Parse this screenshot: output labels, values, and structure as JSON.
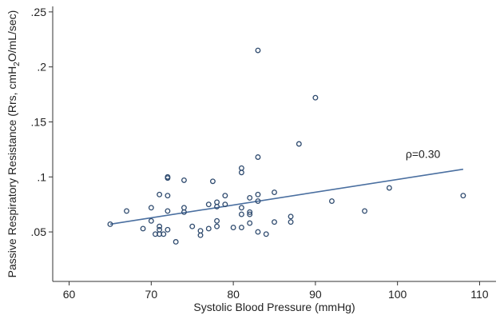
{
  "chart_data": {
    "type": "scatter",
    "title": "",
    "xlabel": "Systolic Blood Pressure (mmHg)",
    "ylabel_parts": [
      "Passive Respiratory Resistance (Rrs, cmH",
      "2",
      "O/mL/sec)"
    ],
    "xlim": [
      58,
      112
    ],
    "ylim": [
      0.005,
      0.255
    ],
    "xticks": [
      60,
      70,
      80,
      90,
      100,
      110
    ],
    "xtick_labels": [
      "60",
      "70",
      "80",
      "90",
      "100",
      "110"
    ],
    "yticks": [
      0.05,
      0.1,
      0.15,
      0.2,
      0.25
    ],
    "ytick_labels": [
      ".05",
      ".1",
      ".15",
      ".2",
      ".25"
    ],
    "grid": false,
    "annotation": "ρ=0.30",
    "marker": "hollow-circle",
    "colors": {
      "marker": "#2e4a6e",
      "fit_line": "#4a6fa0",
      "axis": "#333333"
    },
    "fit_line": {
      "x": [
        65,
        108
      ],
      "y": [
        0.057,
        0.107
      ]
    },
    "points": [
      {
        "x": 65,
        "y": 0.057
      },
      {
        "x": 67,
        "y": 0.069
      },
      {
        "x": 69,
        "y": 0.053
      },
      {
        "x": 70,
        "y": 0.072
      },
      {
        "x": 70,
        "y": 0.06
      },
      {
        "x": 70.5,
        "y": 0.048
      },
      {
        "x": 71,
        "y": 0.084
      },
      {
        "x": 71,
        "y": 0.055
      },
      {
        "x": 71,
        "y": 0.052
      },
      {
        "x": 71,
        "y": 0.048
      },
      {
        "x": 71.5,
        "y": 0.048
      },
      {
        "x": 72,
        "y": 0.1
      },
      {
        "x": 72,
        "y": 0.099
      },
      {
        "x": 72,
        "y": 0.083
      },
      {
        "x": 72,
        "y": 0.069
      },
      {
        "x": 72,
        "y": 0.052
      },
      {
        "x": 73,
        "y": 0.041
      },
      {
        "x": 74,
        "y": 0.097
      },
      {
        "x": 74,
        "y": 0.072
      },
      {
        "x": 74,
        "y": 0.068
      },
      {
        "x": 75,
        "y": 0.055
      },
      {
        "x": 76,
        "y": 0.051
      },
      {
        "x": 76,
        "y": 0.047
      },
      {
        "x": 77,
        "y": 0.075
      },
      {
        "x": 77,
        "y": 0.053
      },
      {
        "x": 77.5,
        "y": 0.096
      },
      {
        "x": 78,
        "y": 0.077
      },
      {
        "x": 78,
        "y": 0.073
      },
      {
        "x": 78,
        "y": 0.06
      },
      {
        "x": 78,
        "y": 0.055
      },
      {
        "x": 79,
        "y": 0.083
      },
      {
        "x": 79,
        "y": 0.075
      },
      {
        "x": 80,
        "y": 0.054
      },
      {
        "x": 81,
        "y": 0.108
      },
      {
        "x": 81,
        "y": 0.104
      },
      {
        "x": 81,
        "y": 0.072
      },
      {
        "x": 81,
        "y": 0.066
      },
      {
        "x": 81,
        "y": 0.054
      },
      {
        "x": 82,
        "y": 0.081
      },
      {
        "x": 82,
        "y": 0.068
      },
      {
        "x": 82,
        "y": 0.066
      },
      {
        "x": 82,
        "y": 0.058
      },
      {
        "x": 83,
        "y": 0.215
      },
      {
        "x": 83,
        "y": 0.118
      },
      {
        "x": 83,
        "y": 0.084
      },
      {
        "x": 83,
        "y": 0.078
      },
      {
        "x": 83,
        "y": 0.05
      },
      {
        "x": 84,
        "y": 0.048
      },
      {
        "x": 85,
        "y": 0.086
      },
      {
        "x": 85,
        "y": 0.059
      },
      {
        "x": 87,
        "y": 0.064
      },
      {
        "x": 87,
        "y": 0.059
      },
      {
        "x": 88,
        "y": 0.13
      },
      {
        "x": 90,
        "y": 0.172
      },
      {
        "x": 92,
        "y": 0.078
      },
      {
        "x": 96,
        "y": 0.069
      },
      {
        "x": 99,
        "y": 0.09
      },
      {
        "x": 108,
        "y": 0.083
      }
    ]
  }
}
